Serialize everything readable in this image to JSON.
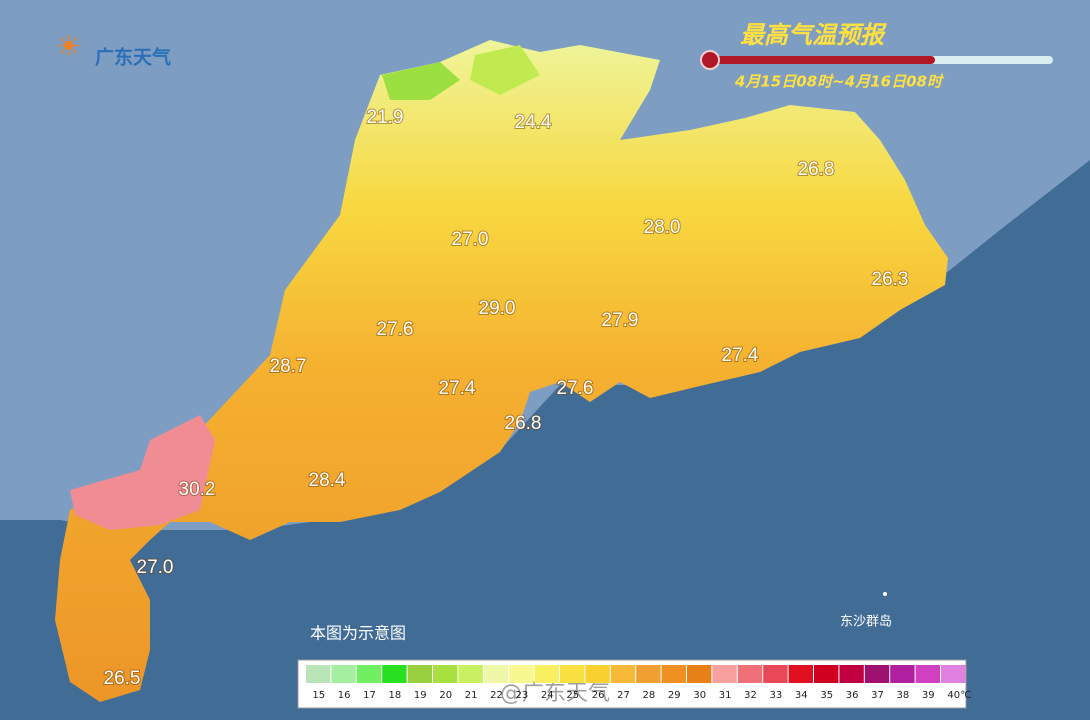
{
  "logo": "广东天气",
  "title": "最高气温预报",
  "subtitle": "4月15日08时~4月16日08时",
  "labels": [
    "21.9",
    "24.4",
    "26.8",
    "27.0",
    "28.0",
    "26.3",
    "29.0",
    "27.6",
    "27.9",
    "28.7",
    "27.4",
    "27.4",
    "27.6",
    "26.8",
    "30.2",
    "28.4",
    "27.0",
    "26.5"
  ],
  "island_label": "东沙群岛",
  "legend": {
    "note": "本图为示意图",
    "unit": "℃",
    "items": [
      {
        "value": 15,
        "color": "#b8e4b8"
      },
      {
        "value": 16,
        "color": "#a4f0a0"
      },
      {
        "value": 17,
        "color": "#70f060"
      },
      {
        "value": 18,
        "color": "#28e020"
      },
      {
        "value": 19,
        "color": "#98d040"
      },
      {
        "value": 20,
        "color": "#a8e040"
      },
      {
        "value": 21,
        "color": "#c8f060"
      },
      {
        "value": 22,
        "color": "#eef8a8"
      },
      {
        "value": 23,
        "color": "#f8f890"
      },
      {
        "value": 24,
        "color": "#f8f060"
      },
      {
        "value": 25,
        "color": "#f8e040"
      },
      {
        "value": 26,
        "color": "#f8d030"
      },
      {
        "value": 27,
        "color": "#f8b838"
      },
      {
        "value": 28,
        "color": "#f0a030"
      },
      {
        "value": 29,
        "color": "#f09020"
      },
      {
        "value": 30,
        "color": "#e88018"
      },
      {
        "value": 31,
        "color": "#f8a0a0"
      },
      {
        "value": 32,
        "color": "#f07078"
      },
      {
        "value": 33,
        "color": "#e84858"
      },
      {
        "value": 34,
        "color": "#e01020"
      },
      {
        "value": 35,
        "color": "#d00020"
      },
      {
        "value": 36,
        "color": "#c00040"
      },
      {
        "value": 37,
        "color": "#a01070"
      },
      {
        "value": 38,
        "color": "#b020a0"
      },
      {
        "value": 39,
        "color": "#d040c0"
      },
      {
        "value": 40,
        "color": "#e080e0"
      }
    ]
  },
  "watermark": "@广东天气"
}
